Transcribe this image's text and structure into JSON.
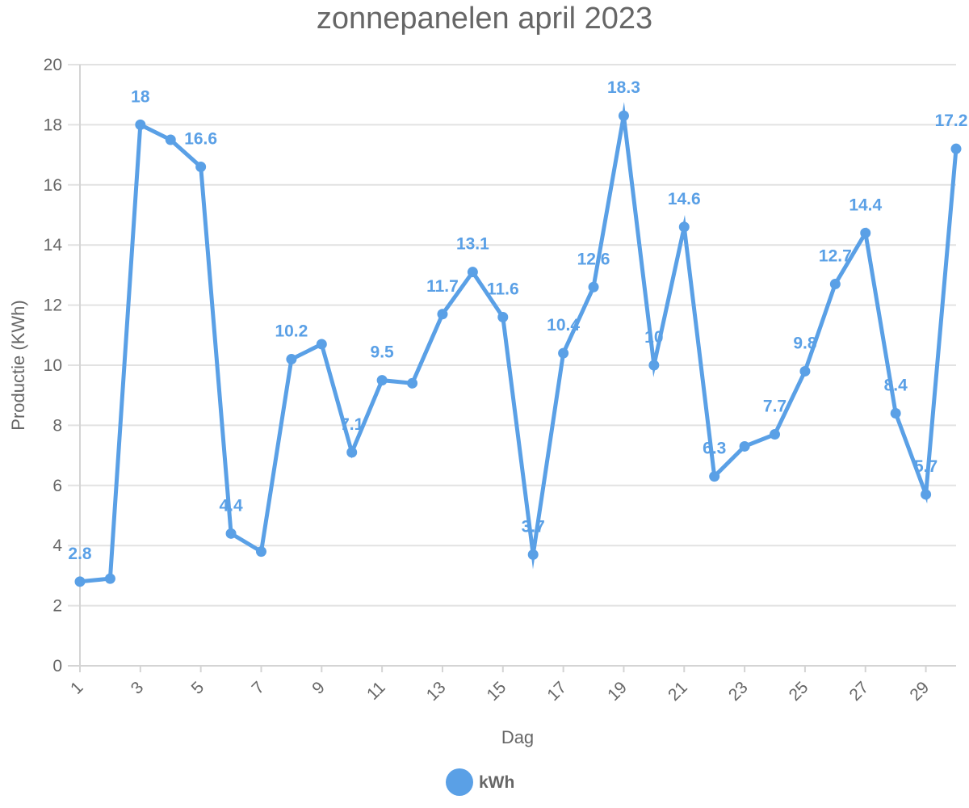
{
  "chart_data": {
    "type": "line",
    "title": "zonnepanelen april 2023",
    "xlabel": "Dag",
    "ylabel": "Productie (KWh)",
    "x": [
      1,
      2,
      3,
      4,
      5,
      6,
      7,
      8,
      9,
      10,
      11,
      12,
      13,
      14,
      15,
      16,
      17,
      18,
      19,
      20,
      21,
      22,
      23,
      24,
      25,
      26,
      27,
      28,
      29,
      30
    ],
    "x_tick_labels": [
      "1",
      "3",
      "5",
      "7",
      "9",
      "11",
      "13",
      "15",
      "17",
      "19",
      "21",
      "23",
      "25",
      "27",
      "29"
    ],
    "ylim": [
      0,
      20
    ],
    "y_ticks": [
      0,
      2,
      4,
      6,
      8,
      10,
      12,
      14,
      16,
      18,
      20
    ],
    "grid": true,
    "legend_position": "bottom",
    "series": [
      {
        "name": "kWh",
        "color": "#5aa0e6",
        "values": [
          2.8,
          2.9,
          18,
          17.5,
          16.6,
          4.4,
          3.8,
          10.2,
          10.7,
          7.1,
          9.5,
          9.4,
          11.7,
          13.1,
          11.6,
          3.7,
          10.4,
          12.6,
          18.3,
          10,
          14.6,
          6.3,
          7.3,
          7.7,
          9.8,
          12.7,
          14.4,
          8.4,
          5.7,
          17.2
        ],
        "data_labels": [
          {
            "index": 0,
            "text": "2.8"
          },
          {
            "index": 2,
            "text": "18"
          },
          {
            "index": 4,
            "text": "16.6"
          },
          {
            "index": 5,
            "text": "4.4"
          },
          {
            "index": 7,
            "text": "10.2"
          },
          {
            "index": 9,
            "text": "7.1"
          },
          {
            "index": 10,
            "text": "9.5"
          },
          {
            "index": 12,
            "text": "11.7"
          },
          {
            "index": 13,
            "text": "13.1"
          },
          {
            "index": 14,
            "text": "11.6"
          },
          {
            "index": 15,
            "text": "3.7"
          },
          {
            "index": 16,
            "text": "10.4"
          },
          {
            "index": 17,
            "text": "12.6"
          },
          {
            "index": 18,
            "text": "18.3"
          },
          {
            "index": 19,
            "text": "10"
          },
          {
            "index": 20,
            "text": "14.6"
          },
          {
            "index": 21,
            "text": "6.3"
          },
          {
            "index": 23,
            "text": "7.7"
          },
          {
            "index": 24,
            "text": "9.8"
          },
          {
            "index": 25,
            "text": "12.7"
          },
          {
            "index": 26,
            "text": "14.4"
          },
          {
            "index": 27,
            "text": "8.4"
          },
          {
            "index": 28,
            "text": "5.7"
          },
          {
            "index": 29,
            "text": "17.2"
          }
        ]
      }
    ]
  }
}
